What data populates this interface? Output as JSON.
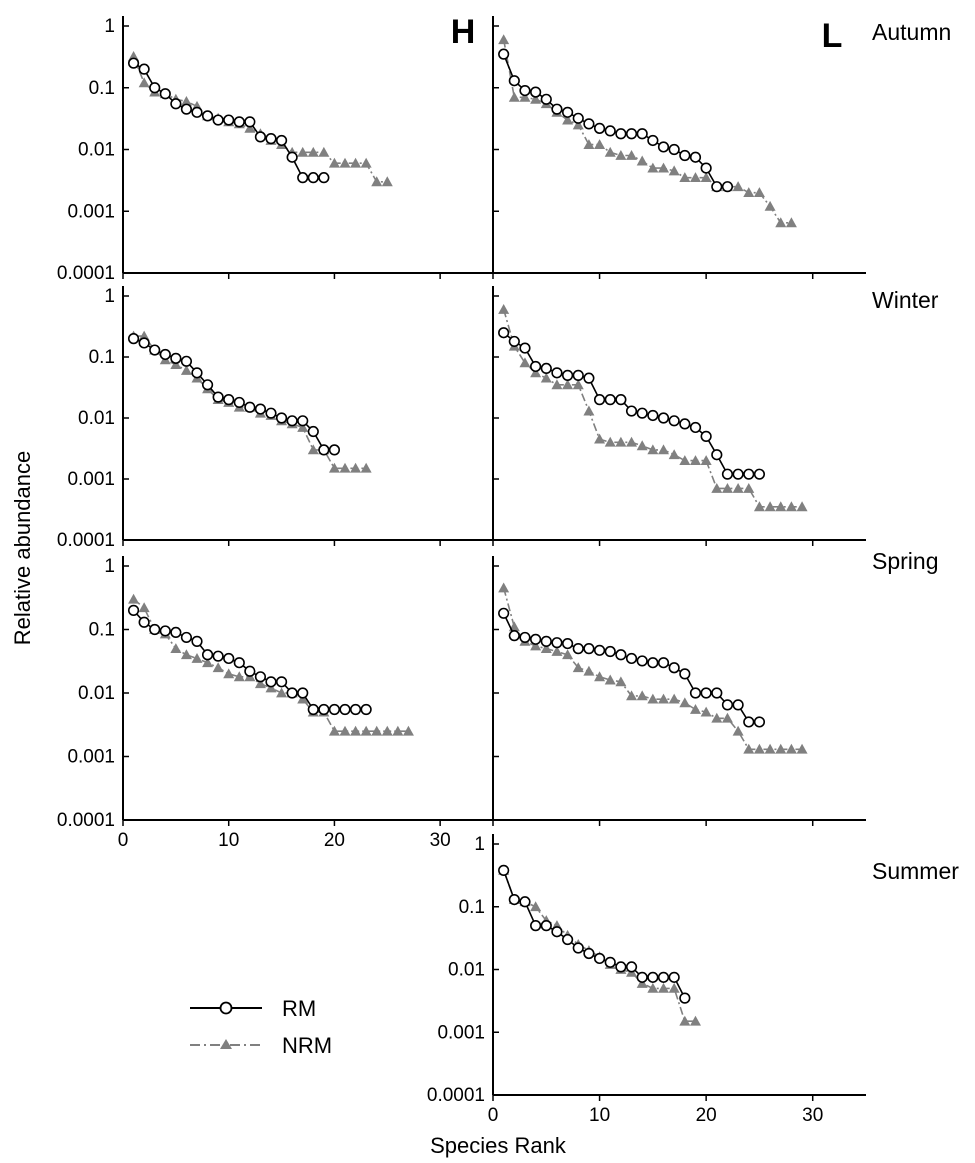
{
  "figure": {
    "panel_letters": [
      "H",
      "L"
    ],
    "seasons": [
      "Autumn",
      "Winter",
      "Spring",
      "Summer"
    ],
    "xlabel": "Species Rank",
    "ylabel": "Relative abundance",
    "y_ticks": [
      1,
      0.1,
      0.01,
      0.001,
      0.0001
    ],
    "y_tick_labels": [
      "1",
      "0.1",
      "0.01",
      "0.001",
      "0.0001"
    ],
    "x_ticks": [
      0,
      10,
      20,
      30
    ],
    "x_tick_labels": [
      "0",
      "10",
      "20",
      "30"
    ],
    "legend": [
      {
        "label": "RM",
        "marker": "open-circle",
        "line": "solid",
        "color": "#000000"
      },
      {
        "label": "NRM",
        "marker": "triangle",
        "line": "dash-dot",
        "color": "#808080"
      }
    ]
  },
  "chart_data": [
    {
      "type": "line",
      "panel": "H",
      "season": "Autumn",
      "yscale": "log",
      "ylim": [
        0.0001,
        1
      ],
      "xlim": [
        0,
        35
      ],
      "series": [
        {
          "name": "RM",
          "x": [
            1,
            2,
            3,
            4,
            5,
            6,
            7,
            8,
            9,
            10,
            11,
            12,
            13,
            14,
            15,
            16,
            17,
            18,
            19
          ],
          "values": [
            0.25,
            0.2,
            0.1,
            0.08,
            0.055,
            0.045,
            0.04,
            0.035,
            0.03,
            0.03,
            0.028,
            0.028,
            0.016,
            0.015,
            0.014,
            0.0075,
            0.0035,
            0.0035,
            0.0035
          ]
        },
        {
          "name": "NRM",
          "x": [
            1,
            2,
            3,
            4,
            5,
            6,
            7,
            8,
            9,
            10,
            11,
            12,
            13,
            14,
            15,
            16,
            17,
            18,
            19,
            20,
            21,
            22,
            23,
            24,
            25
          ],
          "values": [
            0.32,
            0.12,
            0.085,
            0.08,
            0.065,
            0.06,
            0.05,
            0.035,
            0.032,
            0.028,
            0.026,
            0.022,
            0.018,
            0.014,
            0.012,
            0.009,
            0.009,
            0.009,
            0.009,
            0.006,
            0.006,
            0.006,
            0.006,
            0.003,
            0.003
          ]
        }
      ]
    },
    {
      "type": "line",
      "panel": "L",
      "season": "Autumn",
      "yscale": "log",
      "ylim": [
        0.0001,
        1
      ],
      "xlim": [
        0,
        35
      ],
      "series": [
        {
          "name": "RM",
          "x": [
            1,
            2,
            3,
            4,
            5,
            6,
            7,
            8,
            9,
            10,
            11,
            12,
            13,
            14,
            15,
            16,
            17,
            18,
            19,
            20,
            21,
            22
          ],
          "values": [
            0.35,
            0.13,
            0.09,
            0.085,
            0.065,
            0.045,
            0.04,
            0.032,
            0.026,
            0.022,
            0.02,
            0.018,
            0.018,
            0.018,
            0.014,
            0.011,
            0.01,
            0.008,
            0.0075,
            0.005,
            0.0025,
            0.0025
          ]
        },
        {
          "name": "NRM",
          "x": [
            1,
            2,
            3,
            4,
            5,
            6,
            7,
            8,
            9,
            10,
            11,
            12,
            13,
            14,
            15,
            16,
            17,
            18,
            19,
            20,
            21,
            22,
            23,
            24,
            25,
            26,
            27,
            28
          ],
          "values": [
            0.6,
            0.07,
            0.07,
            0.065,
            0.055,
            0.04,
            0.03,
            0.025,
            0.012,
            0.012,
            0.009,
            0.008,
            0.008,
            0.0065,
            0.005,
            0.005,
            0.0045,
            0.0035,
            0.0035,
            0.0035,
            0.0025,
            0.0025,
            0.0025,
            0.002,
            0.002,
            0.0012,
            0.00065,
            0.00065
          ]
        }
      ]
    },
    {
      "type": "line",
      "panel": "H",
      "season": "Winter",
      "yscale": "log",
      "ylim": [
        0.0001,
        1
      ],
      "xlim": [
        0,
        35
      ],
      "series": [
        {
          "name": "RM",
          "x": [
            1,
            2,
            3,
            4,
            5,
            6,
            7,
            8,
            9,
            10,
            11,
            12,
            13,
            14,
            15,
            16,
            17,
            18,
            19,
            20
          ],
          "values": [
            0.2,
            0.17,
            0.13,
            0.11,
            0.095,
            0.085,
            0.055,
            0.035,
            0.022,
            0.02,
            0.018,
            0.015,
            0.014,
            0.012,
            0.01,
            0.009,
            0.009,
            0.006,
            0.003,
            0.003
          ]
        },
        {
          "name": "NRM",
          "x": [
            1,
            2,
            3,
            4,
            5,
            6,
            7,
            8,
            9,
            10,
            11,
            12,
            13,
            14,
            15,
            16,
            17,
            18,
            19,
            20,
            21,
            22,
            23
          ],
          "values": [
            0.22,
            0.22,
            0.13,
            0.09,
            0.075,
            0.06,
            0.045,
            0.03,
            0.02,
            0.018,
            0.015,
            0.015,
            0.012,
            0.011,
            0.009,
            0.008,
            0.007,
            0.003,
            0.003,
            0.0015,
            0.0015,
            0.0015,
            0.0015
          ]
        }
      ]
    },
    {
      "type": "line",
      "panel": "L",
      "season": "Winter",
      "yscale": "log",
      "ylim": [
        0.0001,
        1
      ],
      "xlim": [
        0,
        35
      ],
      "series": [
        {
          "name": "RM",
          "x": [
            1,
            2,
            3,
            4,
            5,
            6,
            7,
            8,
            9,
            10,
            11,
            12,
            13,
            14,
            15,
            16,
            17,
            18,
            19,
            20,
            21,
            22,
            23,
            24,
            25
          ],
          "values": [
            0.25,
            0.18,
            0.14,
            0.07,
            0.065,
            0.055,
            0.05,
            0.05,
            0.045,
            0.02,
            0.02,
            0.02,
            0.013,
            0.012,
            0.011,
            0.01,
            0.009,
            0.008,
            0.007,
            0.005,
            0.0025,
            0.0012,
            0.0012,
            0.0012,
            0.0012
          ]
        },
        {
          "name": "NRM",
          "x": [
            1,
            2,
            3,
            4,
            5,
            6,
            7,
            8,
            9,
            10,
            11,
            12,
            13,
            14,
            15,
            16,
            17,
            18,
            19,
            20,
            21,
            22,
            23,
            24,
            25,
            26,
            27,
            28,
            29
          ],
          "values": [
            0.6,
            0.15,
            0.08,
            0.055,
            0.045,
            0.035,
            0.035,
            0.035,
            0.013,
            0.0045,
            0.004,
            0.004,
            0.004,
            0.0035,
            0.003,
            0.003,
            0.0025,
            0.002,
            0.002,
            0.002,
            0.0007,
            0.0007,
            0.0007,
            0.0007,
            0.00035,
            0.00035,
            0.00035,
            0.00035,
            0.00035
          ]
        }
      ]
    },
    {
      "type": "line",
      "panel": "H",
      "season": "Spring",
      "yscale": "log",
      "ylim": [
        0.0001,
        1
      ],
      "xlim": [
        0,
        35
      ],
      "series": [
        {
          "name": "RM",
          "x": [
            1,
            2,
            3,
            4,
            5,
            6,
            7,
            8,
            9,
            10,
            11,
            12,
            13,
            14,
            15,
            16,
            17,
            18,
            19,
            20,
            21,
            22,
            23
          ],
          "values": [
            0.2,
            0.13,
            0.1,
            0.095,
            0.09,
            0.075,
            0.065,
            0.04,
            0.038,
            0.035,
            0.03,
            0.022,
            0.018,
            0.015,
            0.015,
            0.01,
            0.01,
            0.0055,
            0.0055,
            0.0055,
            0.0055,
            0.0055,
            0.0055
          ]
        },
        {
          "name": "NRM",
          "x": [
            1,
            2,
            3,
            4,
            5,
            6,
            7,
            8,
            9,
            10,
            11,
            12,
            13,
            14,
            15,
            16,
            17,
            18,
            19,
            20,
            21,
            22,
            23,
            24,
            25,
            26,
            27
          ],
          "values": [
            0.3,
            0.22,
            0.1,
            0.085,
            0.05,
            0.04,
            0.035,
            0.03,
            0.025,
            0.02,
            0.018,
            0.018,
            0.014,
            0.012,
            0.01,
            0.01,
            0.008,
            0.005,
            0.005,
            0.0025,
            0.0025,
            0.0025,
            0.0025,
            0.0025,
            0.0025,
            0.0025,
            0.0025
          ]
        }
      ]
    },
    {
      "type": "line",
      "panel": "L",
      "season": "Spring",
      "yscale": "log",
      "ylim": [
        0.0001,
        1
      ],
      "xlim": [
        0,
        35
      ],
      "series": [
        {
          "name": "RM",
          "x": [
            1,
            2,
            3,
            4,
            5,
            6,
            7,
            8,
            9,
            10,
            11,
            12,
            13,
            14,
            15,
            16,
            17,
            18,
            19,
            20,
            21,
            22,
            23,
            24,
            25
          ],
          "values": [
            0.18,
            0.08,
            0.075,
            0.07,
            0.065,
            0.062,
            0.06,
            0.05,
            0.05,
            0.047,
            0.045,
            0.04,
            0.035,
            0.032,
            0.03,
            0.03,
            0.025,
            0.02,
            0.01,
            0.01,
            0.01,
            0.0065,
            0.0065,
            0.0035,
            0.0035
          ]
        },
        {
          "name": "NRM",
          "x": [
            1,
            2,
            3,
            4,
            5,
            6,
            7,
            8,
            9,
            10,
            11,
            12,
            13,
            14,
            15,
            16,
            17,
            18,
            19,
            20,
            21,
            22,
            23,
            24,
            25,
            26,
            27,
            28,
            29
          ],
          "values": [
            0.45,
            0.11,
            0.065,
            0.055,
            0.05,
            0.045,
            0.04,
            0.025,
            0.022,
            0.018,
            0.016,
            0.015,
            0.009,
            0.009,
            0.008,
            0.008,
            0.008,
            0.007,
            0.0055,
            0.005,
            0.004,
            0.004,
            0.0025,
            0.0013,
            0.0013,
            0.0013,
            0.0013,
            0.0013,
            0.0013
          ]
        }
      ]
    },
    {
      "type": "line",
      "panel": "L",
      "season": "Summer",
      "yscale": "log",
      "ylim": [
        0.0001,
        1
      ],
      "xlim": [
        0,
        35
      ],
      "series": [
        {
          "name": "RM",
          "x": [
            1,
            2,
            3,
            4,
            5,
            6,
            7,
            8,
            9,
            10,
            11,
            12,
            13,
            14,
            15,
            16,
            17,
            18
          ],
          "values": [
            0.38,
            0.13,
            0.12,
            0.05,
            0.05,
            0.04,
            0.03,
            0.022,
            0.018,
            0.015,
            0.013,
            0.011,
            0.011,
            0.0075,
            0.0075,
            0.0075,
            0.0075,
            0.0035
          ]
        },
        {
          "name": "NRM",
          "x": [
            1,
            2,
            3,
            4,
            5,
            6,
            7,
            8,
            9,
            10,
            11,
            12,
            13,
            14,
            15,
            16,
            17,
            18,
            19
          ],
          "values": [
            0.38,
            0.13,
            0.12,
            0.1,
            0.06,
            0.05,
            0.035,
            0.025,
            0.02,
            0.016,
            0.012,
            0.01,
            0.009,
            0.006,
            0.005,
            0.005,
            0.005,
            0.0015,
            0.0015
          ]
        }
      ]
    }
  ]
}
